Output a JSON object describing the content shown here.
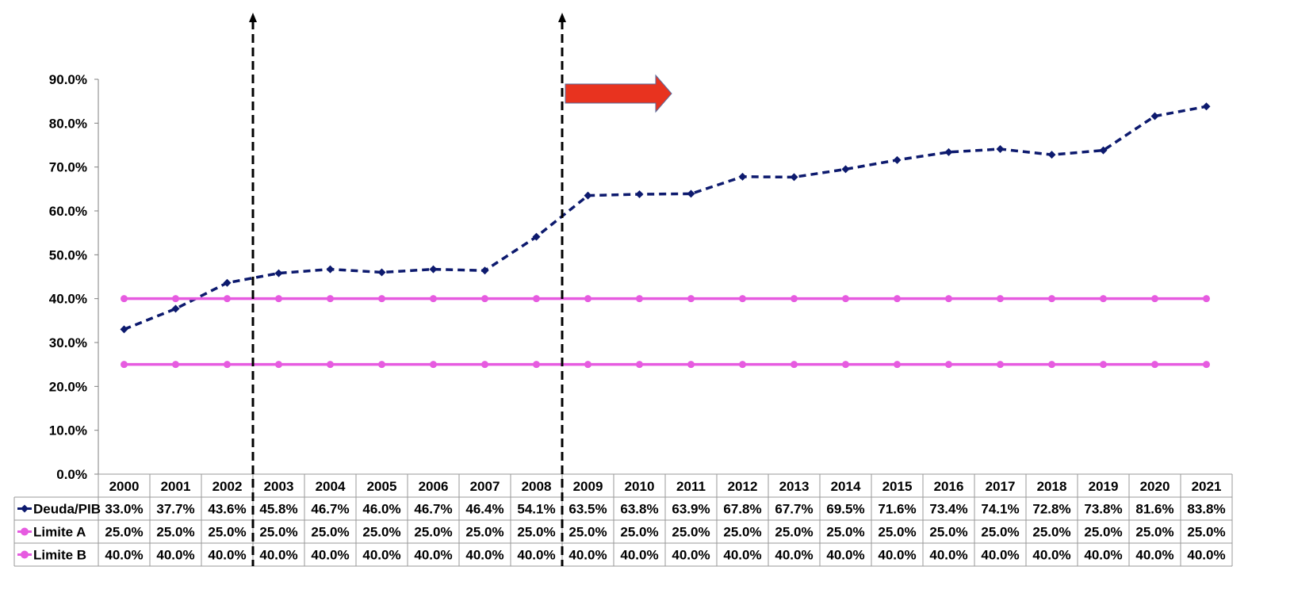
{
  "chart_data": {
    "type": "line",
    "title": "",
    "xlabel": "",
    "ylabel": "",
    "ylim": [
      0,
      90
    ],
    "y_tick_step": 10,
    "y_tick_format": "percent_1dp",
    "grid": false,
    "legend_placement": "data-table-left",
    "categories": [
      "2000",
      "2001",
      "2002",
      "2003",
      "2004",
      "2005",
      "2006",
      "2007",
      "2008",
      "2009",
      "2010",
      "2011",
      "2012",
      "2013",
      "2014",
      "2015",
      "2016",
      "2017",
      "2018",
      "2019",
      "2020",
      "2021"
    ],
    "series": [
      {
        "name": "Deuda/PIB",
        "color": "#0d1a6e",
        "line_style": "dashed",
        "marker": "diamond",
        "values": [
          33.0,
          37.7,
          43.6,
          45.8,
          46.7,
          46.0,
          46.7,
          46.4,
          54.1,
          63.5,
          63.8,
          63.9,
          67.8,
          67.7,
          69.5,
          71.6,
          73.4,
          74.1,
          72.8,
          73.8,
          81.6,
          83.8
        ]
      },
      {
        "name": "Limite A",
        "color": "#e65be0",
        "line_style": "solid",
        "marker": "circle",
        "values": [
          25.0,
          25.0,
          25.0,
          25.0,
          25.0,
          25.0,
          25.0,
          25.0,
          25.0,
          25.0,
          25.0,
          25.0,
          25.0,
          25.0,
          25.0,
          25.0,
          25.0,
          25.0,
          25.0,
          25.0,
          25.0,
          25.0
        ]
      },
      {
        "name": "Limite B",
        "color": "#e65be0",
        "line_style": "solid",
        "marker": "circle",
        "values": [
          40.0,
          40.0,
          40.0,
          40.0,
          40.0,
          40.0,
          40.0,
          40.0,
          40.0,
          40.0,
          40.0,
          40.0,
          40.0,
          40.0,
          40.0,
          40.0,
          40.0,
          40.0,
          40.0,
          40.0,
          40.0,
          40.0
        ]
      }
    ],
    "annotations": {
      "vertical_markers": [
        {
          "between": [
            "2002",
            "2003"
          ],
          "style": "dashed-arrow-up",
          "color": "#000000"
        },
        {
          "between": [
            "2008",
            "2009"
          ],
          "style": "dashed-arrow-up",
          "color": "#000000"
        }
      ],
      "arrow": {
        "direction": "right",
        "color": "#e8331f",
        "start_category": "2009"
      }
    }
  }
}
